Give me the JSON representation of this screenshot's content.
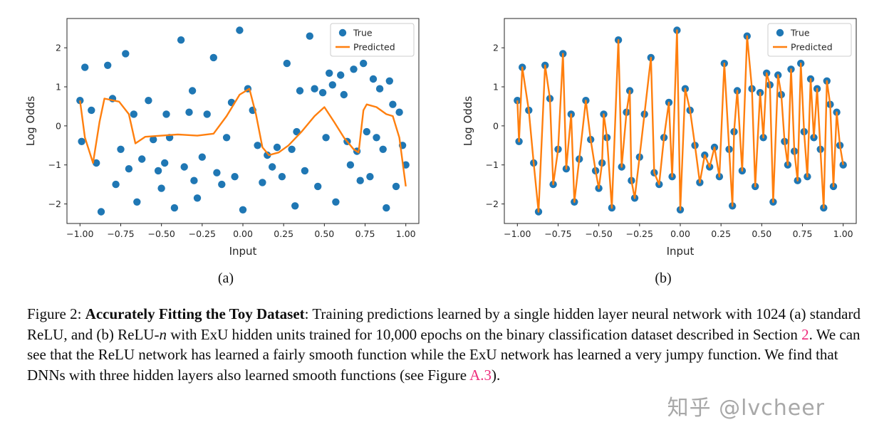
{
  "figure": {
    "panels": [
      {
        "label": "(a)"
      },
      {
        "label": "(b)"
      }
    ],
    "caption_segments": [
      {
        "text": "Figure 2: ",
        "style": "normal"
      },
      {
        "text": "Accurately Fitting the Toy Dataset",
        "style": "bold"
      },
      {
        "text": ": Training predictions learned by a single hidden layer neural network with 1024 (a) standard ReLU, and (b) ReLU-",
        "style": "normal"
      },
      {
        "text": "n",
        "style": "italic"
      },
      {
        "text": " with ExU hidden units trained for 10,000 epochs on the binary classification dataset described in Section ",
        "style": "normal"
      },
      {
        "text": "2",
        "style": "link"
      },
      {
        "text": ". We can see that the ReLU network has learned a fairly smooth function while the ExU network has learned a very jumpy function. We find that DNNs with three hidden layers also learned smooth functions (see Figure ",
        "style": "normal"
      },
      {
        "text": "A.3",
        "style": "link"
      },
      {
        "text": ").",
        "style": "normal"
      }
    ]
  },
  "watermark": {
    "text": "知乎 @lvcheer"
  },
  "colors": {
    "scatter": "#1f77b4",
    "line": "#ff7f0e",
    "link": "#ee2a7b",
    "watermark": "#a8a8a8",
    "axis": "#262626",
    "legend_border": "#cccccc"
  },
  "chart_data": [
    {
      "type": "scatter",
      "panel": "a",
      "title": "",
      "xlabel": "Input",
      "ylabel": "Log Odds",
      "xlim": [
        -1.08,
        1.08
      ],
      "ylim": [
        -2.5,
        2.75
      ],
      "grid": false,
      "legend": [
        "True",
        "Predicted"
      ],
      "legend_position": "upper right",
      "xticks": [
        -1.0,
        -0.75,
        -0.5,
        -0.25,
        0.0,
        0.25,
        0.5,
        0.75,
        1.0
      ],
      "xtick_labels": [
        "−1.00",
        "−0.75",
        "−0.50",
        "−0.25",
        "0.00",
        "0.25",
        "0.50",
        "0.75",
        "1.00"
      ],
      "yticks": [
        -2,
        -1,
        0,
        1,
        2
      ],
      "ytick_labels": [
        "−2",
        "−1",
        "0",
        "1",
        "2"
      ],
      "scatter": [
        [
          -1.0,
          0.65
        ],
        [
          -0.99,
          -0.4
        ],
        [
          -0.97,
          1.5
        ],
        [
          -0.93,
          0.4
        ],
        [
          -0.9,
          -0.95
        ],
        [
          -0.87,
          -2.2
        ],
        [
          -0.83,
          1.55
        ],
        [
          -0.8,
          0.7
        ],
        [
          -0.78,
          -1.5
        ],
        [
          -0.75,
          -0.6
        ],
        [
          -0.72,
          1.85
        ],
        [
          -0.7,
          -1.1
        ],
        [
          -0.67,
          0.3
        ],
        [
          -0.65,
          -1.95
        ],
        [
          -0.62,
          -0.85
        ],
        [
          -0.58,
          0.65
        ],
        [
          -0.55,
          -0.35
        ],
        [
          -0.52,
          -1.15
        ],
        [
          -0.5,
          -1.6
        ],
        [
          -0.48,
          -0.95
        ],
        [
          -0.47,
          0.3
        ],
        [
          -0.45,
          -0.3
        ],
        [
          -0.42,
          -2.1
        ],
        [
          -0.38,
          2.2
        ],
        [
          -0.36,
          -1.05
        ],
        [
          -0.33,
          0.35
        ],
        [
          -0.31,
          0.9
        ],
        [
          -0.3,
          -1.4
        ],
        [
          -0.28,
          -1.85
        ],
        [
          -0.25,
          -0.8
        ],
        [
          -0.22,
          0.3
        ],
        [
          -0.18,
          1.75
        ],
        [
          -0.16,
          -1.2
        ],
        [
          -0.13,
          -1.5
        ],
        [
          -0.1,
          -0.3
        ],
        [
          -0.07,
          0.6
        ],
        [
          -0.05,
          -1.3
        ],
        [
          -0.02,
          2.45
        ],
        [
          0.0,
          -2.15
        ],
        [
          0.03,
          0.95
        ],
        [
          0.06,
          0.4
        ],
        [
          0.09,
          -0.5
        ],
        [
          0.12,
          -1.45
        ],
        [
          0.15,
          -0.75
        ],
        [
          0.18,
          -1.05
        ],
        [
          0.21,
          -0.55
        ],
        [
          0.24,
          -1.3
        ],
        [
          0.27,
          1.6
        ],
        [
          0.3,
          -0.6
        ],
        [
          0.32,
          -2.05
        ],
        [
          0.33,
          -0.15
        ],
        [
          0.35,
          0.9
        ],
        [
          0.38,
          -1.15
        ],
        [
          0.41,
          2.3
        ],
        [
          0.44,
          0.95
        ],
        [
          0.46,
          -1.55
        ],
        [
          0.49,
          0.85
        ],
        [
          0.51,
          -0.3
        ],
        [
          0.53,
          1.35
        ],
        [
          0.55,
          1.05
        ],
        [
          0.57,
          -1.95
        ],
        [
          0.6,
          1.3
        ],
        [
          0.62,
          0.8
        ],
        [
          0.64,
          -0.4
        ],
        [
          0.66,
          -1.0
        ],
        [
          0.68,
          1.45
        ],
        [
          0.7,
          -0.65
        ],
        [
          0.72,
          -1.4
        ],
        [
          0.74,
          1.6
        ],
        [
          0.76,
          -0.15
        ],
        [
          0.78,
          -1.3
        ],
        [
          0.8,
          1.2
        ],
        [
          0.82,
          -0.3
        ],
        [
          0.84,
          0.95
        ],
        [
          0.86,
          -0.6
        ],
        [
          0.88,
          -2.1
        ],
        [
          0.9,
          1.15
        ],
        [
          0.92,
          0.55
        ],
        [
          0.94,
          -1.55
        ],
        [
          0.96,
          0.35
        ],
        [
          0.98,
          -0.5
        ],
        [
          1.0,
          -1.0
        ]
      ],
      "line": [
        [
          -1.0,
          0.65
        ],
        [
          -0.97,
          -0.3
        ],
        [
          -0.92,
          -0.95
        ],
        [
          -0.88,
          0.1
        ],
        [
          -0.85,
          0.7
        ],
        [
          -0.76,
          0.62
        ],
        [
          -0.7,
          0.3
        ],
        [
          -0.66,
          -0.45
        ],
        [
          -0.6,
          -0.28
        ],
        [
          -0.5,
          -0.25
        ],
        [
          -0.4,
          -0.22
        ],
        [
          -0.28,
          -0.25
        ],
        [
          -0.18,
          -0.2
        ],
        [
          -0.1,
          0.25
        ],
        [
          -0.02,
          0.8
        ],
        [
          0.04,
          0.95
        ],
        [
          0.08,
          0.3
        ],
        [
          0.12,
          -0.55
        ],
        [
          0.16,
          -0.75
        ],
        [
          0.22,
          -0.68
        ],
        [
          0.28,
          -0.5
        ],
        [
          0.36,
          -0.15
        ],
        [
          0.44,
          0.25
        ],
        [
          0.5,
          0.48
        ],
        [
          0.56,
          0.1
        ],
        [
          0.62,
          -0.3
        ],
        [
          0.68,
          -0.6
        ],
        [
          0.71,
          -0.68
        ],
        [
          0.74,
          0.4
        ],
        [
          0.76,
          0.55
        ],
        [
          0.82,
          0.48
        ],
        [
          0.88,
          0.3
        ],
        [
          0.92,
          0.25
        ],
        [
          0.96,
          -0.3
        ],
        [
          1.0,
          -1.55
        ]
      ]
    },
    {
      "type": "scatter",
      "panel": "b",
      "title": "",
      "xlabel": "Input",
      "ylabel": "Log Odds",
      "xlim": [
        -1.08,
        1.08
      ],
      "ylim": [
        -2.5,
        2.75
      ],
      "grid": false,
      "legend": [
        "True",
        "Predicted"
      ],
      "legend_position": "upper right",
      "xticks": [
        -1.0,
        -0.75,
        -0.5,
        -0.25,
        0.0,
        0.25,
        0.5,
        0.75,
        1.0
      ],
      "xtick_labels": [
        "−1.00",
        "−0.75",
        "−0.50",
        "−0.25",
        "0.00",
        "0.25",
        "0.50",
        "0.75",
        "1.00"
      ],
      "yticks": [
        -2,
        -1,
        0,
        1,
        2
      ],
      "ytick_labels": [
        "−2",
        "−1",
        "0",
        "1",
        "2"
      ],
      "scatter": [
        [
          -1.0,
          0.65
        ],
        [
          -0.99,
          -0.4
        ],
        [
          -0.97,
          1.5
        ],
        [
          -0.93,
          0.4
        ],
        [
          -0.9,
          -0.95
        ],
        [
          -0.87,
          -2.2
        ],
        [
          -0.83,
          1.55
        ],
        [
          -0.8,
          0.7
        ],
        [
          -0.78,
          -1.5
        ],
        [
          -0.75,
          -0.6
        ],
        [
          -0.72,
          1.85
        ],
        [
          -0.7,
          -1.1
        ],
        [
          -0.67,
          0.3
        ],
        [
          -0.65,
          -1.95
        ],
        [
          -0.62,
          -0.85
        ],
        [
          -0.58,
          0.65
        ],
        [
          -0.55,
          -0.35
        ],
        [
          -0.52,
          -1.15
        ],
        [
          -0.5,
          -1.6
        ],
        [
          -0.48,
          -0.95
        ],
        [
          -0.47,
          0.3
        ],
        [
          -0.45,
          -0.3
        ],
        [
          -0.42,
          -2.1
        ],
        [
          -0.38,
          2.2
        ],
        [
          -0.36,
          -1.05
        ],
        [
          -0.33,
          0.35
        ],
        [
          -0.31,
          0.9
        ],
        [
          -0.3,
          -1.4
        ],
        [
          -0.28,
          -1.85
        ],
        [
          -0.25,
          -0.8
        ],
        [
          -0.22,
          0.3
        ],
        [
          -0.18,
          1.75
        ],
        [
          -0.16,
          -1.2
        ],
        [
          -0.13,
          -1.5
        ],
        [
          -0.1,
          -0.3
        ],
        [
          -0.07,
          0.6
        ],
        [
          -0.05,
          -1.3
        ],
        [
          -0.02,
          2.45
        ],
        [
          0.0,
          -2.15
        ],
        [
          0.03,
          0.95
        ],
        [
          0.06,
          0.4
        ],
        [
          0.09,
          -0.5
        ],
        [
          0.12,
          -1.45
        ],
        [
          0.15,
          -0.75
        ],
        [
          0.18,
          -1.05
        ],
        [
          0.21,
          -0.55
        ],
        [
          0.24,
          -1.3
        ],
        [
          0.27,
          1.6
        ],
        [
          0.3,
          -0.6
        ],
        [
          0.32,
          -2.05
        ],
        [
          0.33,
          -0.15
        ],
        [
          0.35,
          0.9
        ],
        [
          0.38,
          -1.15
        ],
        [
          0.41,
          2.3
        ],
        [
          0.44,
          0.95
        ],
        [
          0.46,
          -1.55
        ],
        [
          0.49,
          0.85
        ],
        [
          0.51,
          -0.3
        ],
        [
          0.53,
          1.35
        ],
        [
          0.55,
          1.05
        ],
        [
          0.57,
          -1.95
        ],
        [
          0.6,
          1.3
        ],
        [
          0.62,
          0.8
        ],
        [
          0.64,
          -0.4
        ],
        [
          0.66,
          -1.0
        ],
        [
          0.68,
          1.45
        ],
        [
          0.7,
          -0.65
        ],
        [
          0.72,
          -1.4
        ],
        [
          0.74,
          1.6
        ],
        [
          0.76,
          -0.15
        ],
        [
          0.78,
          -1.3
        ],
        [
          0.8,
          1.2
        ],
        [
          0.82,
          -0.3
        ],
        [
          0.84,
          0.95
        ],
        [
          0.86,
          -0.6
        ],
        [
          0.88,
          -2.1
        ],
        [
          0.9,
          1.15
        ],
        [
          0.92,
          0.55
        ],
        [
          0.94,
          -1.55
        ],
        [
          0.96,
          0.35
        ],
        [
          0.98,
          -0.5
        ],
        [
          1.0,
          -1.0
        ]
      ],
      "line": [
        [
          -1.0,
          0.65
        ],
        [
          -0.99,
          -0.4
        ],
        [
          -0.97,
          1.5
        ],
        [
          -0.93,
          0.4
        ],
        [
          -0.9,
          -0.95
        ],
        [
          -0.87,
          -2.2
        ],
        [
          -0.83,
          1.55
        ],
        [
          -0.8,
          0.7
        ],
        [
          -0.78,
          -1.5
        ],
        [
          -0.75,
          -0.6
        ],
        [
          -0.72,
          1.85
        ],
        [
          -0.7,
          -1.1
        ],
        [
          -0.67,
          0.3
        ],
        [
          -0.65,
          -1.95
        ],
        [
          -0.62,
          -0.85
        ],
        [
          -0.58,
          0.65
        ],
        [
          -0.55,
          -0.35
        ],
        [
          -0.52,
          -1.15
        ],
        [
          -0.5,
          -1.6
        ],
        [
          -0.48,
          -0.95
        ],
        [
          -0.47,
          0.3
        ],
        [
          -0.45,
          -0.3
        ],
        [
          -0.42,
          -2.1
        ],
        [
          -0.38,
          2.2
        ],
        [
          -0.36,
          -1.05
        ],
        [
          -0.33,
          0.35
        ],
        [
          -0.31,
          0.9
        ],
        [
          -0.3,
          -1.4
        ],
        [
          -0.28,
          -1.85
        ],
        [
          -0.25,
          -0.8
        ],
        [
          -0.22,
          0.3
        ],
        [
          -0.18,
          1.75
        ],
        [
          -0.16,
          -1.2
        ],
        [
          -0.13,
          -1.5
        ],
        [
          -0.1,
          -0.3
        ],
        [
          -0.07,
          0.6
        ],
        [
          -0.05,
          -1.3
        ],
        [
          -0.02,
          2.45
        ],
        [
          0.0,
          -2.15
        ],
        [
          0.03,
          0.95
        ],
        [
          0.06,
          0.4
        ],
        [
          0.09,
          -0.5
        ],
        [
          0.12,
          -1.45
        ],
        [
          0.15,
          -0.75
        ],
        [
          0.18,
          -1.05
        ],
        [
          0.21,
          -0.55
        ],
        [
          0.24,
          -1.3
        ],
        [
          0.27,
          1.6
        ],
        [
          0.3,
          -0.6
        ],
        [
          0.32,
          -2.05
        ],
        [
          0.33,
          -0.15
        ],
        [
          0.35,
          0.9
        ],
        [
          0.38,
          -1.15
        ],
        [
          0.41,
          2.3
        ],
        [
          0.44,
          0.95
        ],
        [
          0.46,
          -1.55
        ],
        [
          0.49,
          0.85
        ],
        [
          0.51,
          -0.3
        ],
        [
          0.53,
          1.35
        ],
        [
          0.55,
          1.05
        ],
        [
          0.57,
          -1.95
        ],
        [
          0.6,
          1.3
        ],
        [
          0.62,
          0.8
        ],
        [
          0.64,
          -0.4
        ],
        [
          0.66,
          -1.0
        ],
        [
          0.68,
          1.45
        ],
        [
          0.7,
          -0.65
        ],
        [
          0.72,
          -1.4
        ],
        [
          0.74,
          1.6
        ],
        [
          0.76,
          -0.15
        ],
        [
          0.78,
          -1.3
        ],
        [
          0.8,
          1.2
        ],
        [
          0.82,
          -0.3
        ],
        [
          0.84,
          0.95
        ],
        [
          0.86,
          -0.6
        ],
        [
          0.88,
          -2.1
        ],
        [
          0.9,
          1.15
        ],
        [
          0.92,
          0.55
        ],
        [
          0.94,
          -1.55
        ],
        [
          0.96,
          0.35
        ],
        [
          0.98,
          -0.5
        ],
        [
          1.0,
          -1.0
        ]
      ]
    }
  ]
}
